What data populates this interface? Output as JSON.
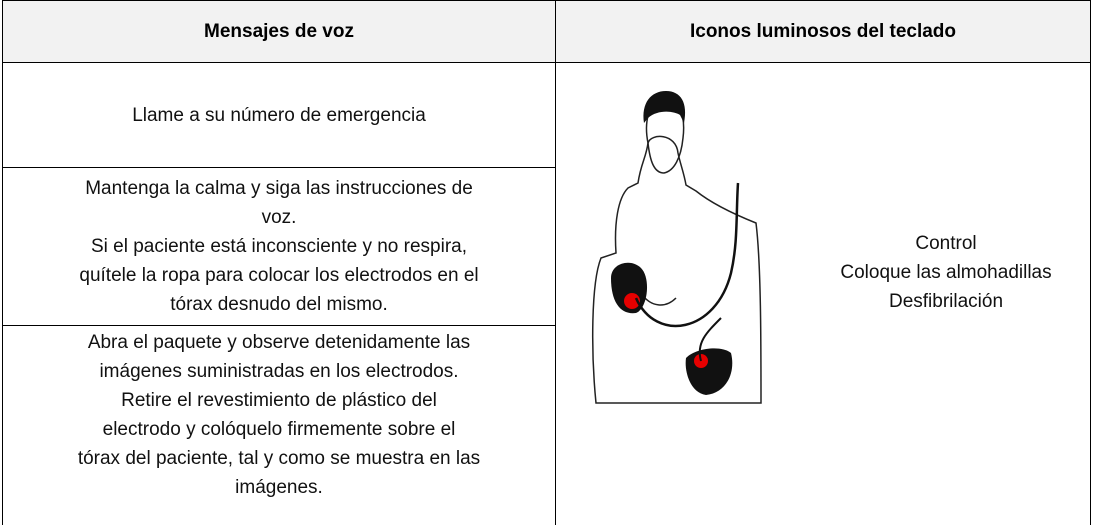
{
  "table": {
    "header": [
      "Mensajes de voz",
      "Iconos luminosos del teclado"
    ],
    "rows": [
      [
        "Llame a su número de emergencia"
      ],
      [
        "Mantenga la calma y siga las instrucciones de",
        "voz.",
        "Si el paciente está inconsciente y no respira,",
        "quítele la ropa para colocar los electrodos en el",
        "tórax desnudo del mismo."
      ],
      [
        "Abra el paquete y observe detenidamente las",
        "imágenes suministradas en los electrodos.",
        "Retire el revestimiento de plástico del",
        "electrodo y colóquelo firmemente sobre el",
        "tórax del paciente, tal y como se muestra en las",
        "imágenes."
      ]
    ],
    "icons": [
      "Control",
      "Coloque las almohadillas",
      "Desfibrilación"
    ]
  }
}
